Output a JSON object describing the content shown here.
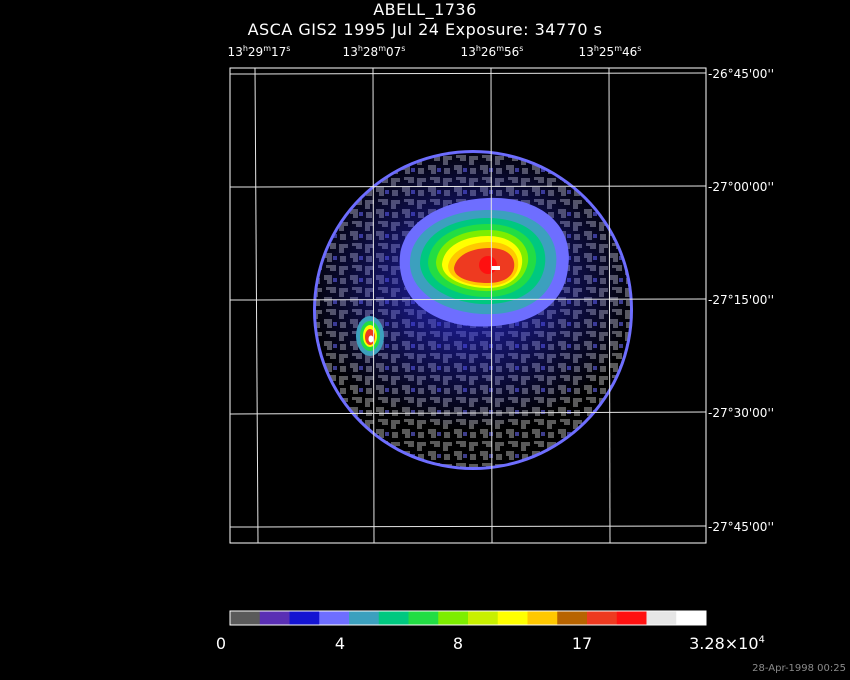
{
  "title": "ABELL_1736",
  "subtitle": "ASCA GIS2    1995 Jul 24     Exposure: 34770  s",
  "ra_labels": [
    {
      "h": "13",
      "m": "29",
      "s": "17"
    },
    {
      "h": "13",
      "m": "28",
      "s": "07"
    },
    {
      "h": "13",
      "m": "26",
      "s": "56"
    },
    {
      "h": "13",
      "m": "25",
      "s": "46"
    }
  ],
  "dec_labels": [
    "-26°45'00''",
    "-27°00'00''",
    "-27°15'00''",
    "-27°30'00''",
    "-27°45'00''"
  ],
  "colorbar": {
    "colors": [
      "#5a5a5a",
      "#5a2fb4",
      "#1414d2",
      "#6e6eff",
      "#3ca0be",
      "#00c880",
      "#22dd44",
      "#7dee00",
      "#c8f000",
      "#ffff00",
      "#ffc800",
      "#b86400",
      "#ee3a20",
      "#ff1010",
      "#e6e6e6",
      "#ffffff"
    ],
    "tick_labels": [
      "0",
      "4",
      "8",
      "17"
    ],
    "max_label_base": "3.28×10",
    "max_label_exp": "4"
  },
  "timestamp": "28-Apr-1998 00:25"
}
